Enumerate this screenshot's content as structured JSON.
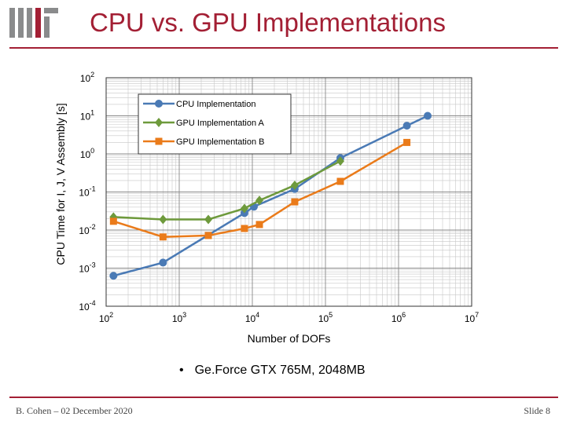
{
  "slide": {
    "title": "CPU vs. GPU Implementations",
    "bullet_text": "Ge.Force GTX 765M, 2048MB",
    "bullet_symbol": "•",
    "footer_author": "B. Cohen – 02 December 2020",
    "footer_slide": "Slide 8",
    "logo_name": "mit-logo",
    "accent_color": "#a31f34"
  },
  "chart_data": {
    "type": "line",
    "xscale": "log",
    "yscale": "log",
    "xlabel": "Number of DOFs",
    "ylabel": "CPU Time for I, J, V Assembly [s]",
    "xlim": [
      100,
      10000000
    ],
    "ylim": [
      0.0001,
      100
    ],
    "x_ticks": [
      {
        "base": "10",
        "exp": "2"
      },
      {
        "base": "10",
        "exp": "3"
      },
      {
        "base": "10",
        "exp": "4"
      },
      {
        "base": "10",
        "exp": "5"
      },
      {
        "base": "10",
        "exp": "6"
      },
      {
        "base": "10",
        "exp": "7"
      }
    ],
    "y_ticks": [
      {
        "base": "10",
        "exp": "-4"
      },
      {
        "base": "10",
        "exp": "-3"
      },
      {
        "base": "10",
        "exp": "-2"
      },
      {
        "base": "10",
        "exp": "-1"
      },
      {
        "base": "10",
        "exp": "0"
      },
      {
        "base": "10",
        "exp": "1"
      },
      {
        "base": "10",
        "exp": "2"
      }
    ],
    "grid": true,
    "legend_position": "top-right",
    "series": [
      {
        "name": "CPU Implementation",
        "color": "#4a7ab5",
        "marker": "circle",
        "x": [
          126,
          600,
          7800,
          10500,
          38000,
          160000,
          1300000,
          2500000
        ],
        "y": [
          0.00063,
          0.0014,
          0.028,
          0.041,
          0.12,
          0.78,
          5.5,
          10.0
        ]
      },
      {
        "name": "GPU Implementation A",
        "color": "#6e9a3c",
        "marker": "diamond",
        "x": [
          126,
          600,
          2500,
          7800,
          12500,
          38000,
          160000
        ],
        "y": [
          0.022,
          0.019,
          0.019,
          0.037,
          0.06,
          0.15,
          0.65
        ]
      },
      {
        "name": "GPU Implementation B",
        "color": "#ea7b1a",
        "marker": "square",
        "x": [
          126,
          600,
          2500,
          7800,
          12500,
          38000,
          160000,
          1300000
        ],
        "y": [
          0.017,
          0.0066,
          0.0072,
          0.011,
          0.014,
          0.055,
          0.19,
          2.0
        ]
      }
    ]
  }
}
